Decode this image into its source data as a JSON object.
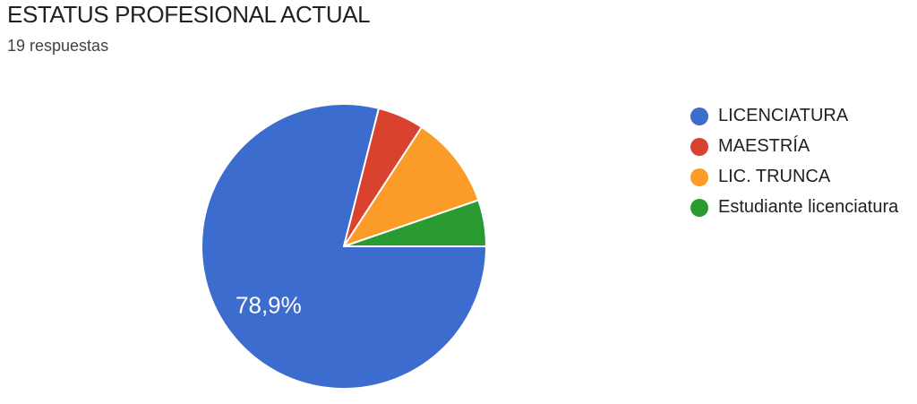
{
  "header": {
    "title": "ESTATUS PROFESIONAL ACTUAL",
    "subtitle": "19 respuestas"
  },
  "chart_data": {
    "type": "pie",
    "title": "ESTATUS PROFESIONAL ACTUAL",
    "responses_text": "19 respuestas",
    "total_responses": 19,
    "start_angle_deg_from_top": 90,
    "direction": "clockwise",
    "legend_position": "right",
    "percent_label_color": "#ffffff",
    "slices": [
      {
        "label": "LICENCIATURA",
        "count": 15,
        "percent": 78.9,
        "percent_label": "78,9%",
        "show_percent_label": true,
        "color": "#3C6CCD"
      },
      {
        "label": "MAESTRÍA",
        "count": 1,
        "percent": 5.3,
        "show_percent_label": false,
        "color": "#D8422E"
      },
      {
        "label": "LIC. TRUNCA",
        "count": 2,
        "percent": 10.5,
        "show_percent_label": false,
        "color": "#FA9C27"
      },
      {
        "label": "Estudiante licenciatura",
        "count": 1,
        "percent": 5.3,
        "show_percent_label": false,
        "color": "#299B30"
      }
    ]
  }
}
